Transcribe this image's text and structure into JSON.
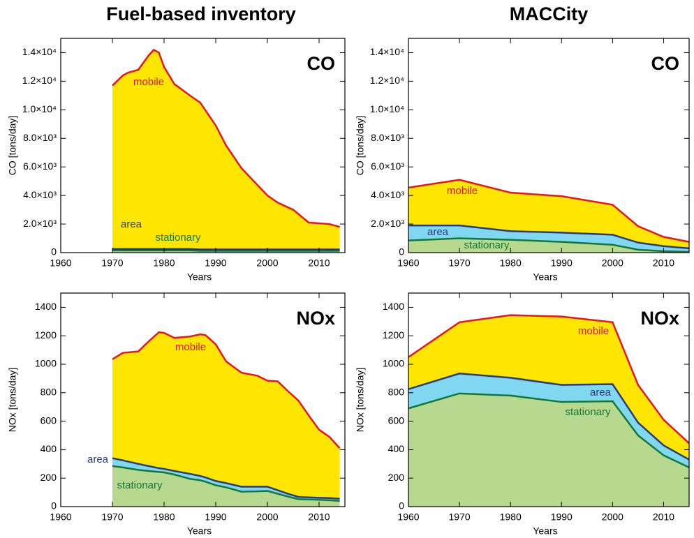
{
  "column_titles": [
    "Fuel-based inventory",
    "MACCity"
  ],
  "chart_data": [
    {
      "type": "stacked-area",
      "panel_label": "CO",
      "ylabel": "CO [tons/day]",
      "xlabel": "Years",
      "x": [
        1970,
        1972,
        1973,
        1975,
        1977,
        1978,
        1979,
        1980,
        1982,
        1985,
        1987,
        1990,
        1992,
        1995,
        2000,
        2002,
        2005,
        2008,
        2010,
        2012,
        2014
      ],
      "series": [
        {
          "name": "stationary",
          "color": "#b7d98f",
          "line_color": "#12783a",
          "values": [
            150,
            150,
            150,
            150,
            150,
            150,
            150,
            150,
            150,
            150,
            120,
            120,
            120,
            120,
            120,
            120,
            120,
            120,
            120,
            120,
            120
          ]
        },
        {
          "name": "area",
          "color": "#7fd8f0",
          "line_color": "#2b3a7a",
          "values": [
            100,
            100,
            100,
            100,
            100,
            100,
            100,
            100,
            100,
            100,
            100,
            100,
            100,
            100,
            100,
            100,
            100,
            100,
            100,
            100,
            100
          ]
        },
        {
          "name": "mobile",
          "color": "#ffe600",
          "line_color": "#e8141e",
          "values": [
            11450,
            12150,
            12350,
            12550,
            13550,
            13950,
            13750,
            12750,
            11550,
            10750,
            10280,
            8680,
            7280,
            5680,
            3780,
            3280,
            2780,
            1880,
            1830,
            1780,
            1580
          ]
        }
      ],
      "xlim": [
        1960,
        2015
      ],
      "xticks": [
        1960,
        1970,
        1980,
        1990,
        2000,
        2010
      ],
      "ylim": [
        0,
        15000
      ],
      "yticks": [
        0,
        {
          "value": 2000,
          "label": "2.0×10³"
        },
        {
          "value": 4000,
          "label": "4.0×10³"
        },
        {
          "value": 6000,
          "label": "6.0×10³"
        },
        {
          "value": 8000,
          "label": "8.0×10³"
        },
        {
          "value": 10000,
          "label": "1.0×10⁴"
        },
        {
          "value": 12000,
          "label": "1.2×10⁴"
        },
        {
          "value": 14000,
          "label": "1.4×10⁴"
        }
      ]
    },
    {
      "type": "stacked-area",
      "panel_label": "CO",
      "ylabel": "CO [tons/day]",
      "xlabel": "Years",
      "x": [
        1960,
        1970,
        1980,
        1990,
        2000,
        2005,
        2010,
        2015
      ],
      "series": [
        {
          "name": "stationary",
          "color": "#b7d98f",
          "line_color": "#12783a",
          "values": [
            850,
            1000,
            900,
            750,
            550,
            200,
            100,
            50
          ]
        },
        {
          "name": "area",
          "color": "#7fd8f0",
          "line_color": "#2b3a7a",
          "values": [
            1050,
            900,
            600,
            650,
            700,
            500,
            350,
            250
          ]
        },
        {
          "name": "mobile",
          "color": "#ffe600",
          "line_color": "#e8141e",
          "values": [
            2650,
            3200,
            2700,
            2550,
            2100,
            1150,
            650,
            450
          ]
        }
      ],
      "xlim": [
        1960,
        2015
      ],
      "xticks": [
        1960,
        1970,
        1980,
        1990,
        2000,
        2010
      ],
      "ylim": [
        0,
        15000
      ],
      "yticks": [
        0,
        {
          "value": 2000,
          "label": "2.0×10³"
        },
        {
          "value": 4000,
          "label": "4.0×10³"
        },
        {
          "value": 6000,
          "label": "6.0×10³"
        },
        {
          "value": 8000,
          "label": "8.0×10³"
        },
        {
          "value": 10000,
          "label": "1.0×10⁴"
        },
        {
          "value": 12000,
          "label": "1.2×10⁴"
        },
        {
          "value": 14000,
          "label": "1.4×10⁴"
        }
      ]
    },
    {
      "type": "stacked-area",
      "panel_label": "NOx",
      "ylabel": "NOx [tons/day]",
      "xlabel": "Years",
      "x": [
        1970,
        1972,
        1975,
        1977,
        1979,
        1980,
        1982,
        1985,
        1987,
        1988,
        1990,
        1992,
        1995,
        1998,
        2000,
        2002,
        2004,
        2006,
        2008,
        2010,
        2012,
        2014
      ],
      "series": [
        {
          "name": "stationary",
          "color": "#b7d98f",
          "line_color": "#12783a",
          "values": [
            285,
            275,
            258,
            250,
            243,
            240,
            225,
            195,
            185,
            175,
            150,
            135,
            105,
            107,
            110,
            90,
            70,
            52,
            50,
            48,
            45,
            40
          ]
        },
        {
          "name": "area",
          "color": "#7fd8f0",
          "line_color": "#2b3a7a",
          "values": [
            55,
            50,
            42,
            35,
            27,
            25,
            25,
            35,
            30,
            30,
            30,
            30,
            35,
            33,
            30,
            25,
            20,
            16,
            15,
            14,
            15,
            15
          ]
        },
        {
          "name": "mobile",
          "color": "#ffe600",
          "line_color": "#e8141e",
          "values": [
            695,
            755,
            790,
            875,
            955,
            955,
            935,
            965,
            995,
            1000,
            960,
            855,
            800,
            780,
            745,
            765,
            720,
            677,
            575,
            478,
            430,
            355
          ]
        }
      ],
      "xlim": [
        1960,
        2015
      ],
      "xticks": [
        1960,
        1970,
        1980,
        1990,
        2000,
        2010
      ],
      "ylim": [
        0,
        1500
      ],
      "yticks": [
        0,
        200,
        400,
        600,
        800,
        1000,
        1200,
        1400
      ]
    },
    {
      "type": "stacked-area",
      "panel_label": "NOx",
      "ylabel": "NOx [tons/day]",
      "xlabel": "Years",
      "x": [
        1960,
        1970,
        1980,
        1990,
        2000,
        2005,
        2010,
        2015
      ],
      "series": [
        {
          "name": "stationary",
          "color": "#b7d98f",
          "line_color": "#12783a",
          "values": [
            690,
            795,
            780,
            735,
            740,
            500,
            360,
            275
          ]
        },
        {
          "name": "area",
          "color": "#7fd8f0",
          "line_color": "#2b3a7a",
          "values": [
            135,
            140,
            125,
            120,
            120,
            90,
            70,
            55
          ]
        },
        {
          "name": "mobile",
          "color": "#ffe600",
          "line_color": "#e8141e",
          "values": [
            225,
            360,
            440,
            480,
            435,
            265,
            180,
            115
          ]
        }
      ],
      "xlim": [
        1960,
        2015
      ],
      "xticks": [
        1960,
        1970,
        1980,
        1990,
        2000,
        2010
      ],
      "ylim": [
        0,
        1500
      ],
      "yticks": [
        0,
        200,
        400,
        600,
        800,
        1000,
        1200,
        1400
      ]
    }
  ]
}
